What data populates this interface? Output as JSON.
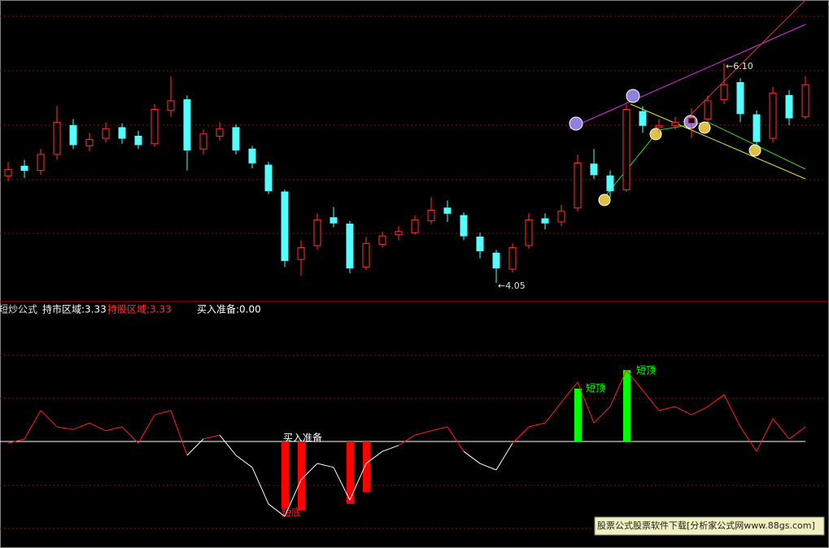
{
  "header": {
    "name": "短炒公式",
    "items": [
      {
        "text": "持市区域:3.33",
        "color": "#ffffff"
      },
      {
        "text": "持股区域:3.33",
        "color": "#ff3030"
      },
      {
        "text": "买入准备:0.00",
        "color": "#ffffff"
      }
    ]
  },
  "chart_data": [
    {
      "type": "candlestick",
      "up_color": "#ff3232",
      "down_color": "#54ffff",
      "ylim": [
        3.96,
        6.69
      ],
      "low_label": "←4.05",
      "high_label": "←6.10",
      "open": [
        5.05,
        5.14,
        5.1,
        5.25,
        5.52,
        5.33,
        5.4,
        5.5,
        5.42,
        5.35,
        5.66,
        5.76,
        5.3,
        5.42,
        5.5,
        5.3,
        5.15,
        4.9,
        4.27,
        4.4,
        4.66,
        4.6,
        4.2,
        4.41,
        4.5,
        4.52,
        4.63,
        4.75,
        4.68,
        4.48,
        4.33,
        4.18,
        4.4,
        4.65,
        4.62,
        4.75,
        5.16,
        5.05,
        4.92,
        5.65,
        5.5,
        5.52,
        5.54,
        5.58,
        5.76,
        5.92,
        5.62,
        5.4,
        5.8,
        5.6
      ],
      "high": [
        5.18,
        5.2,
        5.3,
        5.7,
        5.58,
        5.45,
        5.55,
        5.54,
        5.47,
        5.72,
        5.98,
        5.8,
        5.48,
        5.55,
        5.53,
        5.33,
        5.18,
        4.92,
        4.45,
        4.7,
        4.76,
        4.63,
        4.48,
        4.53,
        4.58,
        4.68,
        4.85,
        4.82,
        4.71,
        4.52,
        4.36,
        4.42,
        4.7,
        4.7,
        4.78,
        5.25,
        5.3,
        5.1,
        5.72,
        5.7,
        5.58,
        5.6,
        5.68,
        5.8,
        6.1,
        5.96,
        5.66,
        5.88,
        5.85,
        5.98
      ],
      "low": [
        5.0,
        5.03,
        5.06,
        5.2,
        5.3,
        5.28,
        5.36,
        5.35,
        5.3,
        5.32,
        5.6,
        5.1,
        5.25,
        5.38,
        5.25,
        5.12,
        4.88,
        4.2,
        4.12,
        4.36,
        4.57,
        4.14,
        4.17,
        4.38,
        4.45,
        4.5,
        4.6,
        4.62,
        4.45,
        4.28,
        4.05,
        4.15,
        4.37,
        4.55,
        4.58,
        4.72,
        5.02,
        4.85,
        4.9,
        5.45,
        5.46,
        5.48,
        5.4,
        5.55,
        5.72,
        5.55,
        5.3,
        5.36,
        5.52,
        5.58
      ],
      "close": [
        5.11,
        5.1,
        5.25,
        5.55,
        5.34,
        5.39,
        5.49,
        5.4,
        5.34,
        5.67,
        5.75,
        5.29,
        5.44,
        5.49,
        5.29,
        5.17,
        4.91,
        4.26,
        4.38,
        4.64,
        4.61,
        4.19,
        4.42,
        4.49,
        4.53,
        4.64,
        4.73,
        4.7,
        4.49,
        4.35,
        4.19,
        4.38,
        4.64,
        4.61,
        4.72,
        5.17,
        5.06,
        4.91,
        5.67,
        5.52,
        5.52,
        5.55,
        5.59,
        5.75,
        5.9,
        5.63,
        5.37,
        5.82,
        5.59,
        5.9
      ]
    },
    {
      "type": "indicator",
      "ylim": [
        -23.6,
        32.3
      ],
      "above_color": "#ff2020",
      "below_color": "#ffffff",
      "values": [
        -0.4,
        0.6,
        7.2,
        3.4,
        2.8,
        4.3,
        2.5,
        3.4,
        -0.4,
        6.2,
        7.2,
        -3.2,
        0.6,
        1.5,
        -3.2,
        -6,
        -14.5,
        -17.4,
        -8.9,
        -5.1,
        -6,
        -13.6,
        -5.1,
        -2.3,
        -0.9,
        1.5,
        2.5,
        3.4,
        -2.3,
        -5.1,
        -6.6,
        -0.4,
        3.4,
        4.3,
        9.1,
        13.8,
        4.3,
        8.1,
        16.6,
        11.9,
        7.2,
        8.1,
        6.2,
        8.1,
        10.9,
        3.4,
        -2.3,
        5.3,
        0.6,
        3.4
      ],
      "bars": [
        {
          "color": "#ff0000",
          "values": [
            null,
            null,
            null,
            null,
            null,
            null,
            null,
            null,
            null,
            null,
            null,
            null,
            null,
            null,
            null,
            null,
            null,
            -15.5,
            -16,
            null,
            null,
            -14.5,
            -11.7,
            null,
            null,
            null,
            null,
            null,
            null,
            null,
            null,
            null,
            null,
            null,
            null,
            null,
            null,
            null,
            null,
            null,
            null,
            null,
            null,
            null,
            null,
            null,
            null,
            null,
            null,
            null
          ]
        },
        {
          "color": "#00ff00",
          "values": [
            null,
            null,
            null,
            null,
            null,
            null,
            null,
            null,
            null,
            null,
            null,
            null,
            null,
            null,
            null,
            null,
            null,
            null,
            null,
            null,
            null,
            null,
            null,
            null,
            null,
            null,
            null,
            null,
            null,
            null,
            null,
            null,
            null,
            null,
            null,
            12.3,
            null,
            null,
            16.6,
            null,
            null,
            null,
            null,
            null,
            null,
            null,
            null,
            null,
            null,
            null
          ]
        }
      ],
      "annotations": [
        {
          "text": "买入准备",
          "color": "#ffffff"
        },
        {
          "text": "短底",
          "color": "#ff2020"
        },
        {
          "text": "短顶",
          "color": "#00ff00"
        },
        {
          "text": "短顶",
          "color": "#00ff00"
        }
      ]
    }
  ],
  "footer": "股票公式股票软件下载[分析家公式网www.88gs.com]"
}
